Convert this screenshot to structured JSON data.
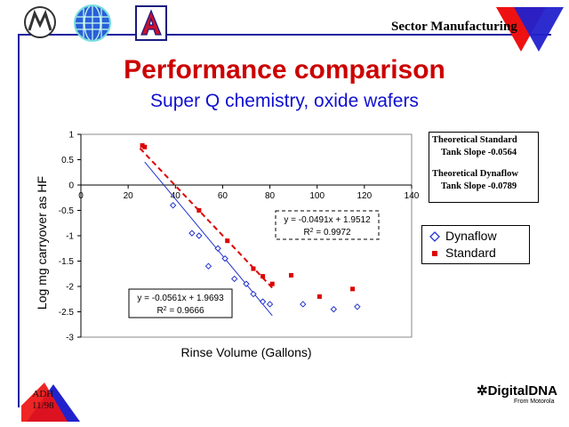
{
  "header": {
    "section": "Sector Manufacturing",
    "colors": {
      "frame": "#1a1aa0",
      "red_triangle": "#ee1111",
      "blue_triangle": "#2222cc"
    }
  },
  "logos": [
    "motorola-logo",
    "globe-logo",
    "arizona-a-logo"
  ],
  "title": "Performance comparison",
  "subtitle": "Super Q chemistry, oxide wafers",
  "theory_box": {
    "line1": "Theoretical Standard",
    "line2": "Tank Slope  -0.0564",
    "line3": "Theoretical Dynaflow",
    "line4": "Tank Slope  -0.0789"
  },
  "legend": {
    "dynaflow": "Dynaflow",
    "standard": "Standard"
  },
  "chart_data": {
    "type": "scatter",
    "xlabel": "Rinse Volume (Gallons)",
    "ylabel": "Log mg carryover as HF",
    "xlim": [
      0,
      140
    ],
    "ylim": [
      -3,
      1
    ],
    "xticks": [
      0,
      20,
      40,
      60,
      80,
      100,
      120,
      140
    ],
    "yticks": [
      1,
      0.5,
      0,
      -0.5,
      -1,
      -1.5,
      -2,
      -2.5,
      -3
    ],
    "xticklabels": [
      "0",
      "20",
      "40",
      "60",
      "80",
      "100",
      "120",
      "140"
    ],
    "yticklabels": [
      "1",
      "0.5",
      "0",
      "-0.5",
      "-1",
      "-1.5",
      "-2",
      "-2.5",
      "-3"
    ],
    "series": [
      {
        "name": "Dynaflow",
        "color": "#2233cc",
        "marker": "diamond-open",
        "x": [
          39,
          47,
          50,
          54,
          58,
          61,
          65,
          70,
          73,
          77,
          80,
          94,
          107,
          117
        ],
        "y": [
          -0.4,
          -0.95,
          -1.0,
          -1.6,
          -1.25,
          -1.45,
          -1.85,
          -1.95,
          -2.15,
          -2.3,
          -2.35,
          -2.35,
          -2.45,
          -2.4
        ]
      },
      {
        "name": "Standard",
        "color": "#dd0000",
        "marker": "square-filled",
        "x": [
          26,
          27,
          50,
          62,
          73,
          77,
          81,
          89,
          101,
          115
        ],
        "y": [
          0.78,
          0.75,
          -0.5,
          -1.1,
          -1.65,
          -1.8,
          -1.95,
          -1.78,
          -2.2,
          -2.05
        ]
      }
    ],
    "trendlines": [
      {
        "series": "Dynaflow",
        "slope": -0.0561,
        "intercept": 1.9693,
        "x_range": [
          27,
          81
        ],
        "style": "solid",
        "color": "#2233cc",
        "equation": "y = -0.0561x + 1.9693",
        "r2_prefix": "R",
        "r2_sup": "2",
        "r2_value": " = 0.9666"
      },
      {
        "series": "Standard",
        "slope": -0.0491,
        "intercept": 1.9512,
        "x_range": [
          25,
          82
        ],
        "style": "dashed",
        "color": "#dd0000",
        "equation": "y = -0.0491x + 1.9512",
        "r2_prefix": "R",
        "r2_sup": "2",
        "r2_value": " = 0.9972"
      }
    ],
    "grid": false,
    "legend_position": "right"
  },
  "footer": {
    "badge_line1": "ADH",
    "badge_line2": "11/98",
    "brand": "DigitalDNA",
    "brand_sub": "From Motorola"
  }
}
